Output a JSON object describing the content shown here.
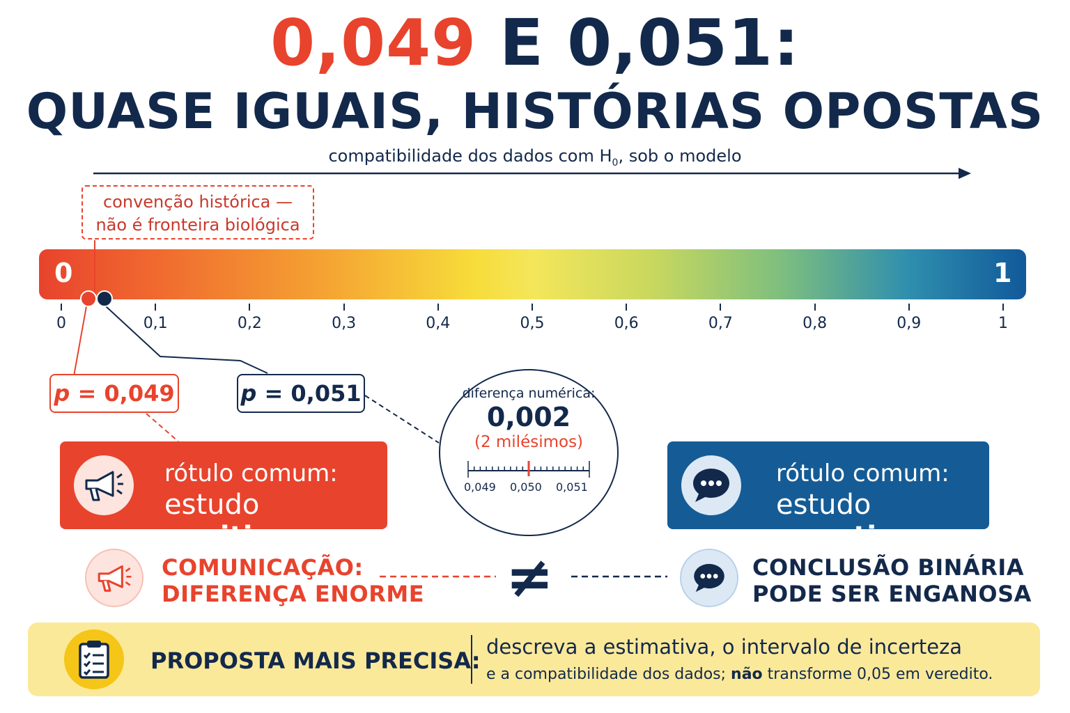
{
  "title": {
    "part1": "0,049",
    "part2": " E ",
    "part3": "0,051:",
    "line2": "QUASE IGUAIS, HISTÓRIAS OPOSTAS"
  },
  "axis": {
    "label_before": "compatibilidade dos dados com H",
    "label_sub": "0",
    "label_after": ", sob o modelo"
  },
  "note": {
    "line1": "convenção histórica —",
    "line2": "não é fronteira biológica"
  },
  "scale": {
    "start_label": "0",
    "end_label": "1",
    "ticks": [
      "0",
      "0,1",
      "0,2",
      "0,3",
      "0,4",
      "0,5",
      "0,6",
      "0,7",
      "0,8",
      "0,9",
      "1"
    ]
  },
  "pvalues": {
    "low": {
      "label": "p",
      "value": " = 0,049",
      "numeric": 0.049
    },
    "high": {
      "label": "p",
      "value": " = 0,051",
      "numeric": 0.051
    }
  },
  "difference": {
    "heading": "diferença numérica:",
    "value": "0,002",
    "note": "(2 milésimos)",
    "ruler_labels": [
      "0,049",
      "0,050",
      "0,051"
    ]
  },
  "cards": {
    "positive": {
      "line1": "rótulo comum:",
      "line2a": "estudo ",
      "line2b": "positivo"
    },
    "negative": {
      "line1": "rótulo comum:",
      "line2a": "estudo ",
      "line2b": "negativo"
    }
  },
  "callouts": {
    "left": {
      "line1": "COMUNICAÇÃO:",
      "line2": "DIFERENÇA ENORME"
    },
    "symbol": "≠",
    "right": {
      "line1": "CONCLUSÃO BINÁRIA",
      "line2": "PODE SER ENGANOSA"
    }
  },
  "proposal": {
    "heading": "PROPOSTA MAIS PRECISA:",
    "line1": "descreva a estimativa, o intervalo de incerteza",
    "line2a": "e a compatibilidade dos dados; ",
    "line2b": "não",
    "line2c": " transforme 0,05 em veredito."
  },
  "colors": {
    "red": "#e8432d",
    "navy": "#13294b",
    "blue": "#155c96",
    "yellow": "#fbe99a"
  },
  "icons": [
    "megaphone-icon",
    "speech-bubble-icon",
    "clipboard-checklist-icon",
    "arrow-right-icon"
  ]
}
